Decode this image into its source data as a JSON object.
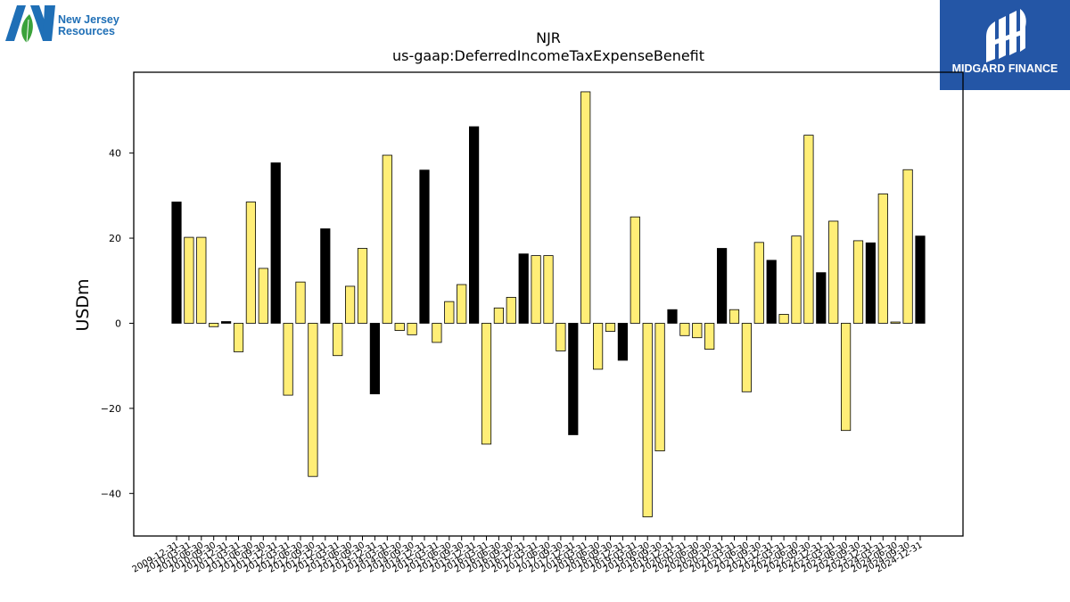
{
  "brand": {
    "company_line1": "New Jersey",
    "company_line2": "Resources",
    "publisher": "MIDGARD FINANCE",
    "colors": {
      "company_blue": "#1f6fb6",
      "company_green": "#3aa23b",
      "publisher_bg": "#2456a6"
    }
  },
  "chart_data": {
    "type": "bar",
    "title": "NJR",
    "subtitle": "us-gaap:DeferredIncomeTaxExpenseBenefit",
    "xlabel": "",
    "ylabel": "USDm",
    "ylim": [
      -50,
      59
    ],
    "yticks": [
      -40,
      -20,
      0,
      20,
      40
    ],
    "grid": false,
    "colors": {
      "annual": "#000000",
      "quarterly": "#ffee77",
      "edge": "#000000"
    },
    "categories": [
      "2009-12-31",
      "2010-03-31",
      "2010-06-30",
      "2010-09-30",
      "2010-12-31",
      "2011-03-31",
      "2011-06-30",
      "2011-09-30",
      "2011-12-31",
      "2012-03-31",
      "2012-06-30",
      "2012-09-30",
      "2012-12-31",
      "2013-03-31",
      "2013-06-30",
      "2013-09-30",
      "2013-12-31",
      "2014-03-31",
      "2014-06-30",
      "2014-09-30",
      "2014-12-31",
      "2015-03-31",
      "2015-06-30",
      "2015-09-30",
      "2015-12-31",
      "2016-03-31",
      "2016-06-30",
      "2016-09-30",
      "2016-12-31",
      "2017-03-31",
      "2017-06-30",
      "2017-09-30",
      "2017-12-31",
      "2018-03-31",
      "2018-06-30",
      "2018-09-30",
      "2018-12-31",
      "2019-03-31",
      "2019-06-30",
      "2019-09-30",
      "2019-12-31",
      "2020-03-31",
      "2020-06-30",
      "2020-09-30",
      "2020-12-31",
      "2021-03-31",
      "2021-06-30",
      "2021-09-30",
      "2021-12-31",
      "2022-03-31",
      "2022-06-30",
      "2022-09-30",
      "2022-12-31",
      "2023-03-31",
      "2023-06-30",
      "2023-09-30",
      "2023-12-31",
      "2024-03-31",
      "2024-06-30",
      "2024-09-30",
      "2024-12-31"
    ],
    "values": [
      28.5,
      20.2,
      20.2,
      -0.8,
      0.4,
      -6.7,
      28.5,
      12.9,
      37.7,
      -16.9,
      9.7,
      -36.0,
      22.2,
      -7.6,
      8.7,
      17.6,
      -16.6,
      39.5,
      -1.7,
      -2.7,
      36.0,
      -4.5,
      5.1,
      9.1,
      46.2,
      -28.4,
      3.6,
      6.1,
      16.3,
      15.9,
      15.9,
      -6.5,
      -26.2,
      54.4,
      -10.8,
      -1.9,
      -8.7,
      25.0,
      -45.5,
      -30.0,
      3.2,
      -2.9,
      -3.4,
      -6.1,
      17.6,
      3.2,
      -16.1,
      19.0,
      14.8,
      2.1,
      20.5,
      44.2,
      11.9,
      24.0,
      -25.2,
      19.4,
      18.9,
      30.4,
      0.3,
      36.1,
      20.5
    ],
    "annual_flags": [
      1,
      0,
      0,
      0,
      1,
      0,
      0,
      0,
      1,
      0,
      0,
      0,
      1,
      0,
      0,
      0,
      1,
      0,
      0,
      0,
      1,
      0,
      0,
      0,
      1,
      0,
      0,
      0,
      1,
      0,
      0,
      0,
      1,
      0,
      0,
      0,
      1,
      0,
      0,
      0,
      1,
      0,
      0,
      0,
      1,
      0,
      0,
      0,
      1,
      0,
      0,
      0,
      1,
      0,
      0,
      0,
      1,
      0,
      0,
      0,
      1
    ]
  }
}
